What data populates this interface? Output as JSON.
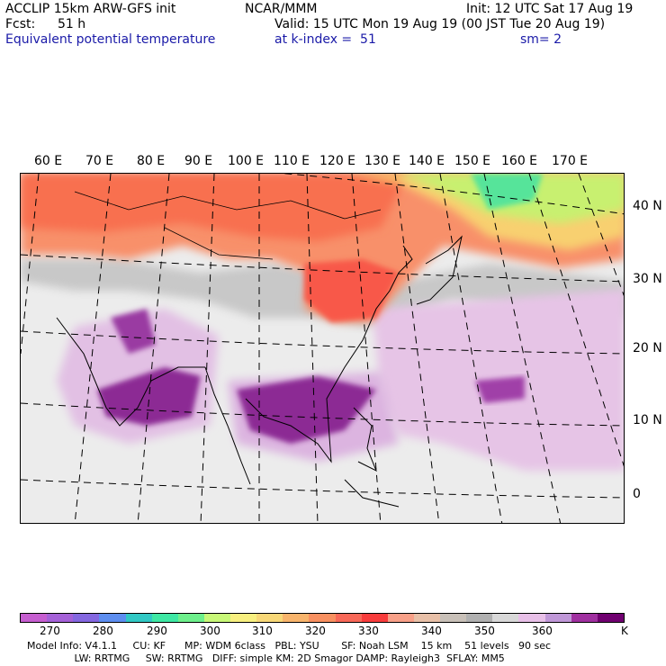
{
  "header": {
    "model": "ACCLIP 15km ARW-GFS init",
    "org": "NCAR/MMM",
    "init": "Init: 12 UTC Sat 17 Aug 19",
    "fcst_label": "Fcst:",
    "fcst_value": "51 h",
    "valid": "Valid: 15 UTC Mon 19 Aug 19 (00 JST Tue 20 Aug 19)",
    "field": "Equivalent potential temperature",
    "level": "at k-index =  51",
    "smoothing": "sm= 2"
  },
  "map": {
    "lon_labels": [
      "60 E",
      "70 E",
      "80 E",
      "90 E",
      "100 E",
      "110 E",
      "120 E",
      "130 E",
      "140 E",
      "150 E",
      "160 E",
      "170 E"
    ],
    "lat_labels": [
      "40 N",
      "30 N",
      "20 N",
      "10 N",
      "0"
    ]
  },
  "colorbar": {
    "colors": [
      "#c65ed0",
      "#a561d8",
      "#8467e0",
      "#5d8ef0",
      "#31c8c4",
      "#3ee8a4",
      "#6ef08c",
      "#c8f878",
      "#f8f080",
      "#f8d878",
      "#f8b46c",
      "#f89060",
      "#f86858",
      "#f83c3c",
      "#f8a088",
      "#e8c0a8",
      "#c8c0b8",
      "#b0b0b0",
      "#d8d8d8",
      "#e8c0e8",
      "#c098d8",
      "#a030a0",
      "#700070"
    ],
    "labels": [
      "270",
      "280",
      "290",
      "300",
      "310",
      "320",
      "330",
      "340",
      "350",
      "360"
    ],
    "unit": "K"
  },
  "footer": {
    "line1": "Model Info: V4.1.1     CU: KF      MP: WDM 6class   PBL: YSU       SF: Noah LSM    15 km    51 levels   90 sec",
    "line2": "               LW: RRTMG     SW: RRTMG   DIFF: simple KM: 2D Smagor DAMP: Rayleigh3  SFLAY: MM5"
  }
}
